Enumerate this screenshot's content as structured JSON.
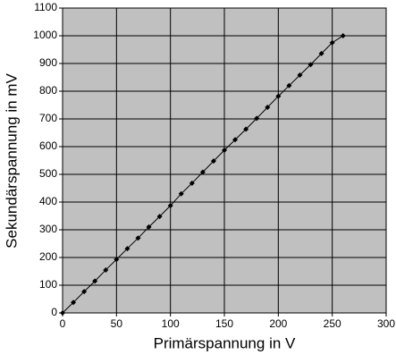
{
  "chart_data": {
    "type": "line",
    "x_label": "Primärspannung in V",
    "y_label": "Sekundärspannung in mV",
    "x": [
      0,
      10,
      20,
      30,
      40,
      50,
      60,
      70,
      80,
      90,
      100,
      110,
      120,
      130,
      140,
      150,
      160,
      170,
      180,
      190,
      200,
      210,
      220,
      230,
      240,
      250,
      260
    ],
    "series": [
      {
        "color": "#000000",
        "values": [
          0,
          38,
          77,
          115,
          155,
          193,
          232,
          270,
          310,
          348,
          387,
          430,
          468,
          508,
          548,
          587,
          625,
          663,
          702,
          742,
          782,
          820,
          858,
          896,
          936,
          975,
          1000
        ]
      }
    ],
    "xlim": [
      0,
      300
    ],
    "xticks": [
      0,
      50,
      100,
      150,
      200,
      250,
      300
    ],
    "ylim": [
      0,
      1100
    ],
    "yticks": [
      0,
      100,
      200,
      300,
      400,
      500,
      600,
      700,
      800,
      900,
      1000,
      1100
    ],
    "grid": true,
    "plot_background": "#c0c0c0"
  }
}
